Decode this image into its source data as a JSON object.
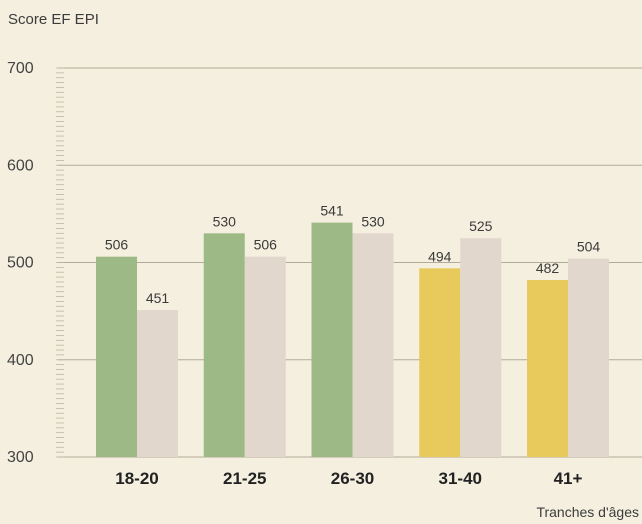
{
  "chart_data": {
    "type": "bar",
    "ylabel": "Score EF EPI",
    "xlabel": "Tranches d'âges",
    "ylim": [
      300,
      700
    ],
    "yticks": [
      300,
      400,
      500,
      600,
      700
    ],
    "categories": [
      "18-20",
      "21-25",
      "26-30",
      "31-40",
      "41+"
    ],
    "series": [
      {
        "values": [
          506,
          530,
          541,
          494,
          482
        ],
        "colors": [
          "#9dba86",
          "#9dba86",
          "#9dba86",
          "#e7c95c",
          "#e7c95c"
        ]
      },
      {
        "values": [
          451,
          506,
          530,
          525,
          504
        ],
        "colors": [
          "#e2d7cc",
          "#e2d7cc",
          "#e2d7cc",
          "#e2d7cc",
          "#e2d7cc"
        ]
      }
    ],
    "grid": true
  }
}
